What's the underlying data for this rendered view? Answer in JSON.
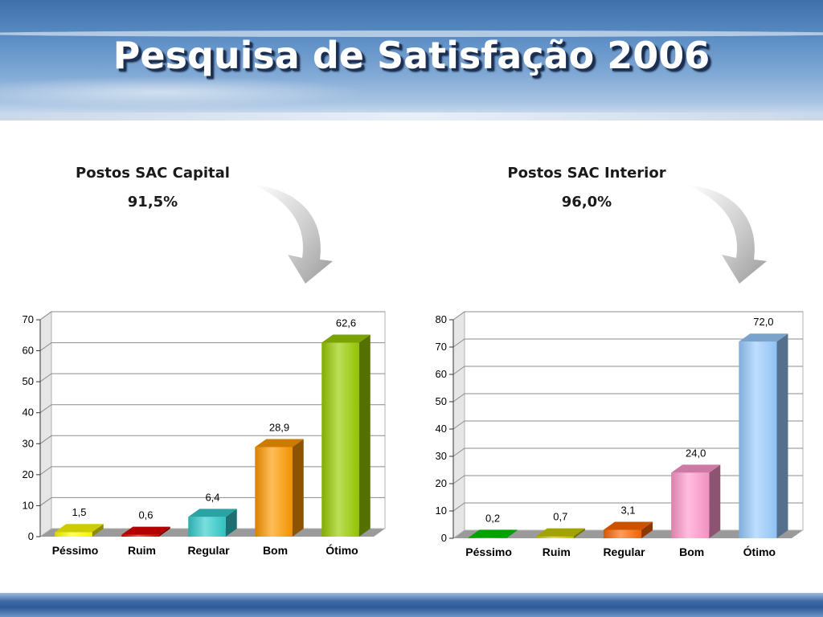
{
  "slide": {
    "title": "Pesquisa de Satisfação 2006"
  },
  "panels": [
    {
      "heading": "Postos SAC Capital",
      "percent": "91,5%"
    },
    {
      "heading": "Postos SAC Interior",
      "percent": "96,0%"
    }
  ],
  "colors": {
    "header": "#4a7bb8",
    "footer": "#3d6aa7"
  },
  "chart_data": [
    {
      "type": "bar",
      "title": "",
      "categories": [
        "Péssimo",
        "Ruim",
        "Regular",
        "Bom",
        "Ótimo"
      ],
      "values": [
        1.5,
        0.6,
        6.4,
        28.9,
        62.6
      ],
      "value_labels": [
        "1,5",
        "0,6",
        "6,4",
        "28,9",
        "62,6"
      ],
      "colors": [
        "#ffff00",
        "#e00000",
        "#33cccc",
        "#ff9900",
        "#99cc00"
      ],
      "ylim": [
        0,
        70
      ],
      "yticks": [
        0,
        10,
        20,
        30,
        40,
        50,
        60,
        70
      ],
      "grid": true,
      "style": "3d",
      "xlabel": "",
      "ylabel": ""
    },
    {
      "type": "bar",
      "title": "",
      "categories": [
        "Péssimo",
        "Ruim",
        "Regular",
        "Bom",
        "Ótimo"
      ],
      "values": [
        0.2,
        0.7,
        3.1,
        24.0,
        72.0
      ],
      "value_labels": [
        "0,2",
        "0,7",
        "3,1",
        "24,0",
        "72,0"
      ],
      "colors": [
        "#00cc00",
        "#cccc00",
        "#ff6600",
        "#ff99cc",
        "#99ccff"
      ],
      "ylim": [
        0,
        80
      ],
      "yticks": [
        0,
        10,
        20,
        30,
        40,
        50,
        60,
        70,
        80
      ],
      "grid": true,
      "style": "3d",
      "xlabel": "",
      "ylabel": ""
    }
  ]
}
